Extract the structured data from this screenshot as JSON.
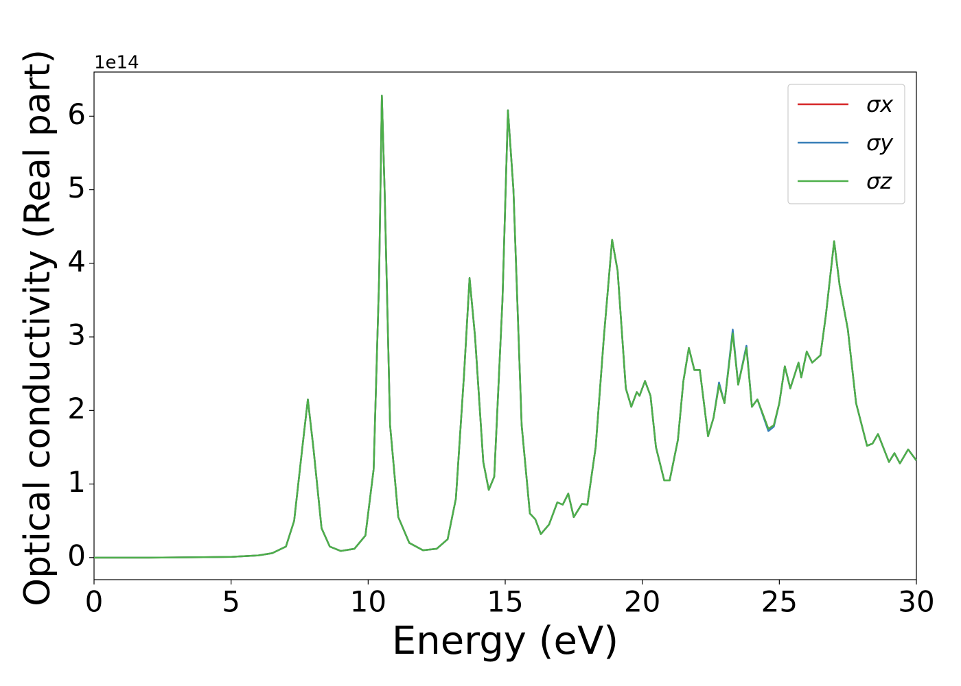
{
  "chart_data": {
    "type": "line",
    "xlabel": "Energy (eV)",
    "ylabel": "Optical conductivity (Real part)",
    "y_offset_label": "1e14",
    "x": [
      0,
      2,
      4,
      5,
      6,
      6.5,
      7,
      7.3,
      7.6,
      7.8,
      8.0,
      8.3,
      8.6,
      9.0,
      9.5,
      9.9,
      10.2,
      10.4,
      10.5,
      10.6,
      10.8,
      11.1,
      11.5,
      12,
      12.5,
      12.9,
      13.2,
      13.5,
      13.7,
      13.9,
      14.2,
      14.4,
      14.6,
      14.9,
      15.1,
      15.3,
      15.6,
      15.9,
      16.1,
      16.3,
      16.6,
      16.9,
      17.1,
      17.3,
      17.5,
      17.8,
      18.0,
      18.3,
      18.6,
      18.9,
      19.1,
      19.4,
      19.6,
      19.8,
      19.9,
      20.1,
      20.3,
      20.5,
      20.8,
      21.0,
      21.3,
      21.5,
      21.7,
      21.9,
      22.1,
      22.4,
      22.6,
      22.8,
      23.0,
      23.3,
      23.5,
      23.8,
      24.0,
      24.2,
      24.6,
      24.8,
      25.0,
      25.2,
      25.4,
      25.7,
      25.8,
      26.0,
      26.2,
      26.5,
      26.7,
      27.0,
      27.2,
      27.5,
      27.8,
      28.2,
      28.4,
      28.6,
      29.0,
      29.2,
      29.4,
      29.7,
      30.0
    ],
    "series": [
      {
        "name": "σx",
        "color": "#d62728",
        "values": [
          0,
          0,
          0.005,
          0.01,
          0.03,
          0.06,
          0.15,
          0.5,
          1.5,
          2.15,
          1.5,
          0.4,
          0.15,
          0.09,
          0.12,
          0.3,
          1.2,
          3.8,
          6.28,
          5.0,
          1.8,
          0.55,
          0.2,
          0.1,
          0.12,
          0.25,
          0.8,
          2.5,
          3.8,
          3.0,
          1.3,
          0.92,
          1.1,
          3.5,
          6.08,
          5.0,
          1.8,
          0.6,
          0.52,
          0.32,
          0.45,
          0.75,
          0.72,
          0.87,
          0.55,
          0.73,
          0.72,
          1.5,
          3.0,
          4.32,
          3.9,
          2.3,
          2.05,
          2.25,
          2.2,
          2.4,
          2.2,
          1.5,
          1.05,
          1.05,
          1.6,
          2.4,
          2.85,
          2.55,
          2.55,
          1.65,
          1.9,
          2.35,
          2.1,
          3.06,
          2.35,
          2.87,
          2.05,
          2.15,
          1.75,
          1.8,
          2.1,
          2.6,
          2.3,
          2.65,
          2.45,
          2.8,
          2.65,
          2.75,
          3.3,
          4.3,
          3.7,
          3.1,
          2.1,
          1.52,
          1.55,
          1.68,
          1.3,
          1.42,
          1.28,
          1.47,
          1.32
        ]
      },
      {
        "name": "σy",
        "color": "#377eb8",
        "values": [
          0,
          0,
          0.005,
          0.01,
          0.03,
          0.06,
          0.15,
          0.5,
          1.5,
          2.15,
          1.5,
          0.4,
          0.15,
          0.09,
          0.12,
          0.3,
          1.2,
          3.8,
          6.28,
          5.0,
          1.8,
          0.55,
          0.2,
          0.1,
          0.12,
          0.25,
          0.8,
          2.5,
          3.8,
          3.0,
          1.3,
          0.92,
          1.1,
          3.5,
          6.08,
          5.0,
          1.8,
          0.6,
          0.52,
          0.32,
          0.45,
          0.75,
          0.72,
          0.87,
          0.55,
          0.73,
          0.72,
          1.5,
          3.0,
          4.32,
          3.9,
          2.3,
          2.05,
          2.25,
          2.2,
          2.4,
          2.2,
          1.5,
          1.05,
          1.05,
          1.6,
          2.4,
          2.85,
          2.55,
          2.55,
          1.65,
          1.9,
          2.38,
          2.1,
          3.1,
          2.35,
          2.88,
          2.05,
          2.15,
          1.72,
          1.78,
          2.1,
          2.6,
          2.3,
          2.65,
          2.45,
          2.8,
          2.65,
          2.75,
          3.3,
          4.3,
          3.7,
          3.1,
          2.1,
          1.52,
          1.55,
          1.68,
          1.3,
          1.42,
          1.28,
          1.47,
          1.32
        ]
      },
      {
        "name": "σz",
        "color": "#4daf4a",
        "values": [
          0,
          0,
          0.005,
          0.01,
          0.03,
          0.06,
          0.15,
          0.5,
          1.5,
          2.15,
          1.5,
          0.4,
          0.15,
          0.09,
          0.12,
          0.3,
          1.2,
          3.8,
          6.28,
          5.0,
          1.8,
          0.55,
          0.2,
          0.1,
          0.12,
          0.25,
          0.8,
          2.5,
          3.8,
          3.0,
          1.3,
          0.92,
          1.1,
          3.5,
          6.08,
          5.0,
          1.8,
          0.6,
          0.52,
          0.32,
          0.45,
          0.75,
          0.72,
          0.87,
          0.55,
          0.73,
          0.72,
          1.5,
          3.0,
          4.32,
          3.9,
          2.3,
          2.05,
          2.25,
          2.2,
          2.4,
          2.2,
          1.5,
          1.05,
          1.05,
          1.6,
          2.4,
          2.85,
          2.55,
          2.55,
          1.65,
          1.9,
          2.35,
          2.1,
          3.05,
          2.35,
          2.85,
          2.05,
          2.15,
          1.75,
          1.8,
          2.1,
          2.6,
          2.3,
          2.65,
          2.45,
          2.8,
          2.65,
          2.75,
          3.3,
          4.3,
          3.7,
          3.1,
          2.1,
          1.52,
          1.55,
          1.68,
          1.3,
          1.42,
          1.28,
          1.47,
          1.32
        ]
      }
    ],
    "xlim": [
      0,
      30
    ],
    "xticks": [
      0,
      5,
      10,
      15,
      20,
      25,
      30
    ],
    "ylim": [
      -0.3,
      6.6
    ],
    "yticks": [
      0,
      1,
      2,
      3,
      4,
      5,
      6
    ],
    "grid": false,
    "legend": "upper right"
  }
}
